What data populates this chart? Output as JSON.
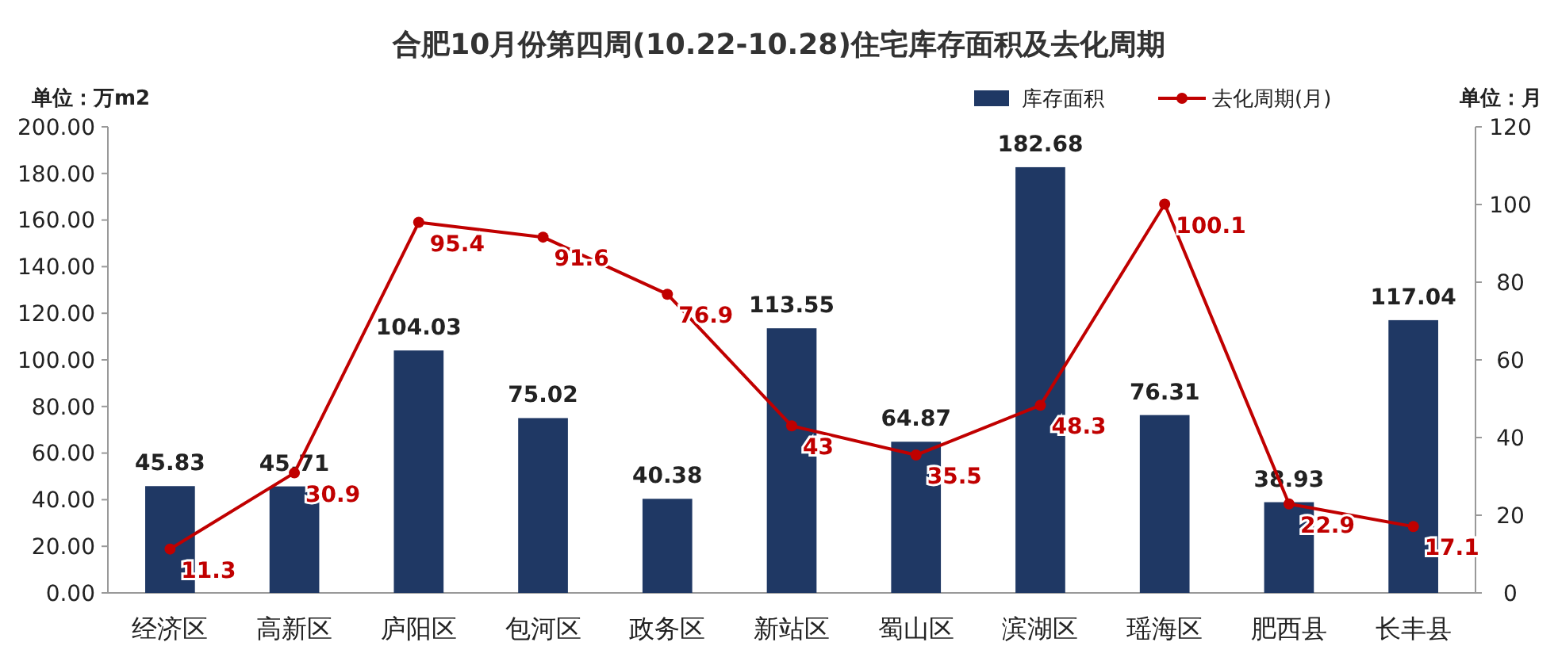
{
  "chart_data": {
    "type": "bar",
    "title": "合肥10月份第四周(10.22-10.28)住宅库存面积及去化周期",
    "ylabel": "单位：万m2",
    "y2label": "单位：月",
    "categories": [
      "经济区",
      "高新区",
      "庐阳区",
      "包河区",
      "政务区",
      "新站区",
      "蜀山区",
      "滨湖区",
      "瑶海区",
      "肥西县",
      "长丰县"
    ],
    "series": [
      {
        "name": "库存面积",
        "color": "#1f3864",
        "values": [
          45.83,
          45.71,
          104.03,
          75.02,
          40.38,
          113.55,
          64.87,
          182.68,
          76.31,
          38.93,
          117.04
        ]
      },
      {
        "name": "去化周期(月)",
        "type": "line",
        "axis": "y2",
        "color": "#c00000",
        "marker": "circle",
        "values": [
          11.3,
          30.9,
          95.4,
          91.6,
          76.9,
          43,
          35.5,
          48.3,
          100.1,
          22.9,
          17.1
        ]
      }
    ],
    "ylim": [
      0,
      200
    ],
    "yticks": [
      {
        "value": 0,
        "label": "0.00"
      },
      {
        "value": 20,
        "label": "20.00"
      },
      {
        "value": 40,
        "label": "40.00"
      },
      {
        "value": 60,
        "label": "60.00"
      },
      {
        "value": 80,
        "label": "80.00"
      },
      {
        "value": 100,
        "label": "100.00"
      },
      {
        "value": 120,
        "label": "120.00"
      },
      {
        "value": 140,
        "label": "140.00"
      },
      {
        "value": 160,
        "label": "160.00"
      },
      {
        "value": 180,
        "label": "180.00"
      },
      {
        "value": 200,
        "label": "200.00"
      }
    ],
    "y2lim": [
      0,
      120
    ],
    "y2ticks": [
      0,
      20,
      40,
      60,
      80,
      100,
      120
    ],
    "data_labels": true,
    "legend": "top right",
    "grid": false
  }
}
